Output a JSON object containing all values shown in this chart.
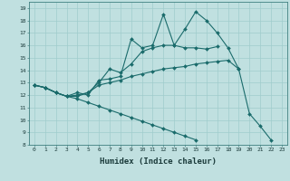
{
  "xlabel": "Humidex (Indice chaleur)",
  "background_color": "#c0e0e0",
  "grid_color": "#a0cccc",
  "line_color": "#1a6b6b",
  "xlim": [
    -0.5,
    23.5
  ],
  "ylim": [
    8,
    19.5
  ],
  "xticks": [
    0,
    1,
    2,
    3,
    4,
    5,
    6,
    7,
    8,
    9,
    10,
    11,
    12,
    13,
    14,
    15,
    16,
    17,
    18,
    19,
    20,
    21,
    22,
    23
  ],
  "yticks": [
    8,
    9,
    10,
    11,
    12,
    13,
    14,
    15,
    16,
    17,
    18,
    19
  ],
  "line1_y": [
    12.8,
    12.6,
    12.2,
    11.9,
    12.2,
    12.0,
    13.2,
    13.3,
    13.5,
    16.5,
    15.8,
    16.0,
    18.5,
    16.0,
    17.3,
    18.7,
    18.0,
    17.0,
    15.8,
    14.1,
    10.5,
    9.5,
    8.4,
    null
  ],
  "line2_y": [
    12.8,
    12.6,
    12.2,
    11.9,
    12.0,
    12.2,
    13.0,
    14.1,
    13.8,
    14.5,
    15.5,
    15.8,
    16.0,
    16.0,
    15.8,
    15.8,
    15.7,
    15.9,
    null,
    null,
    null,
    null,
    null,
    null
  ],
  "line3_y": [
    12.8,
    12.6,
    12.2,
    11.9,
    11.9,
    12.2,
    12.8,
    13.0,
    13.2,
    13.5,
    13.7,
    13.9,
    14.1,
    14.2,
    14.3,
    14.5,
    14.6,
    14.7,
    14.8,
    14.1,
    null,
    null,
    null,
    null
  ],
  "line4_y": [
    12.8,
    12.6,
    12.2,
    11.9,
    11.7,
    11.4,
    11.1,
    10.8,
    10.5,
    10.2,
    9.9,
    9.6,
    9.3,
    9.0,
    8.7,
    8.4,
    null,
    null,
    null,
    null,
    null,
    null,
    null,
    null
  ]
}
